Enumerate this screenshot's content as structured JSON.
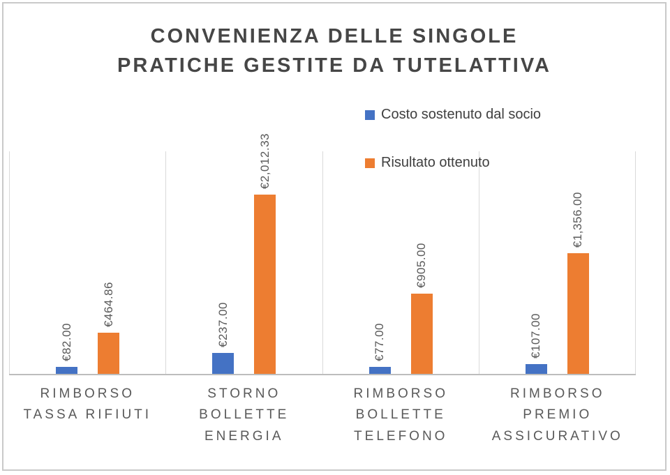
{
  "chart_data": {
    "type": "bar",
    "title": "CONVENIENZA DELLE SINGOLE PRATICHE GESTITE DA TUTELATTIVA",
    "categories": [
      "RIMBORSO TASSA RIFIUTI",
      "STORNO BOLLETTE ENERGIA",
      "RIMBORSO BOLLETTE TELEFONO",
      "RIMBORSO PREMIO ASSICURATIVO"
    ],
    "series": [
      {
        "name": "Costo sostenuto dal socio",
        "color": "#4472C4",
        "values": [
          82.0,
          237.0,
          77.0,
          107.0
        ],
        "labels": [
          "€82.00",
          "€237.00",
          "€77.00",
          "€107.00"
        ]
      },
      {
        "name": "Risultato ottenuto",
        "color": "#ED7D31",
        "values": [
          464.86,
          2012.33,
          905.0,
          1356.0
        ],
        "labels": [
          "€464.86",
          "€2,012.33",
          "€905.00",
          "€1,356.00"
        ]
      }
    ],
    "ylim": [
      0,
      2500
    ],
    "legend_position": "top-right-inside",
    "grid": "vertical-category-separators",
    "value_label_rotation": 90,
    "colors": {
      "title": "#464646",
      "labels": "#595959",
      "gridline": "#d9d9d9",
      "axis": "#bdbdbd",
      "border": "#c9c9c9"
    }
  }
}
